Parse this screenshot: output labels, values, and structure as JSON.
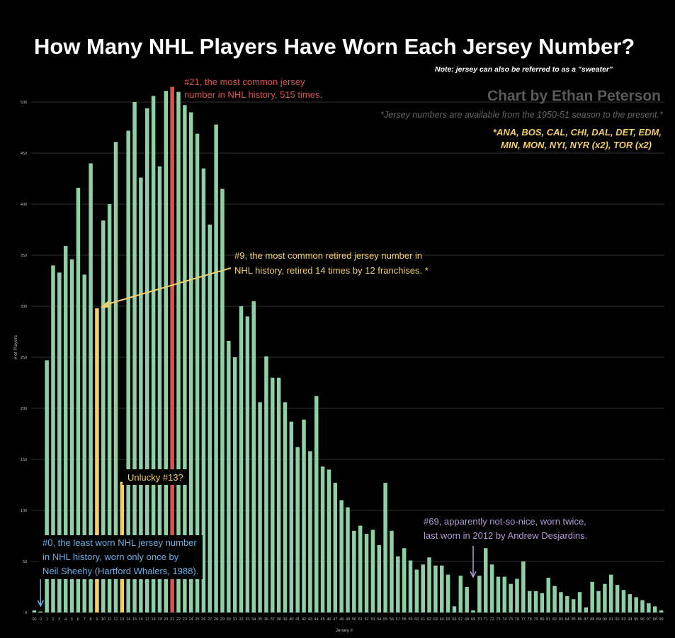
{
  "title": "How Many NHL Players Have Worn Each Jersey Number?",
  "note": "Note: jersey can also be referred to as a \"sweater\"",
  "credit": "Chart by Ethan Peterson",
  "availability_note": "*Jersey numbers are available from the 1950-51 season to the present.*",
  "retired_teams": [
    "*ANA, BOS, CAL, CHI, DAL, DET, EDM,",
    "MIN, MON, NYI, NYR (x2), TOR (x2)"
  ],
  "annotations": {
    "most_common": [
      "#21, the most common jersey",
      "number in NHL history, 515 times."
    ],
    "most_retired": [
      "#9, the most common retired jersey number in",
      "NHL history, retired 14 times by 12 franchises. *"
    ],
    "unlucky": "Unlucky #13?",
    "least_worn": [
      "#0, the least worn NHL jersey number",
      "in NHL history, worn only once by",
      "Neil Sheehy (Hartford Whalers, 1988)."
    ],
    "sixty_nine": [
      "#69, apparently not-so-nice, worn twice,",
      "last worn in 2012 by Andrew Desjardins."
    ]
  },
  "colors": {
    "background": "#000000",
    "bar": "#8fcfa6",
    "highlight_red": "#d9534f",
    "highlight_yellow": "#f3cf6a",
    "highlight_blue": "#6ab0e6",
    "highlight_purple": "#b39ddb",
    "grid": "#333333"
  },
  "chart_data": {
    "type": "bar",
    "title": "How Many NHL Players Have Worn Each Jersey Number?",
    "xlabel": "Jersey #",
    "ylabel": "# of Players",
    "ylim": [
      0,
      520
    ],
    "yticks": [
      0,
      50,
      100,
      150,
      200,
      250,
      300,
      350,
      400,
      450,
      500
    ],
    "grid": true,
    "categories": [
      "00",
      "0",
      "1",
      "2",
      "3",
      "4",
      "5",
      "6",
      "7",
      "8",
      "9",
      "10",
      "11",
      "12",
      "13",
      "14",
      "15",
      "16",
      "17",
      "18",
      "19",
      "20",
      "21",
      "22",
      "23",
      "24",
      "25",
      "26",
      "27",
      "28",
      "29",
      "30",
      "31",
      "32",
      "33",
      "34",
      "35",
      "36",
      "37",
      "38",
      "39",
      "40",
      "41",
      "42",
      "43",
      "44",
      "45",
      "46",
      "47",
      "48",
      "49",
      "50",
      "51",
      "52",
      "53",
      "54",
      "55",
      "56",
      "57",
      "58",
      "59",
      "60",
      "61",
      "62",
      "63",
      "64",
      "65",
      "66",
      "67",
      "68",
      "69",
      "70",
      "71",
      "72",
      "73",
      "74",
      "75",
      "76",
      "77",
      "78",
      "79",
      "80",
      "81",
      "82",
      "83",
      "84",
      "85",
      "86",
      "87",
      "88",
      "89",
      "90",
      "91",
      "92",
      "93",
      "94",
      "95",
      "96",
      "97",
      "98",
      "99"
    ],
    "values": [
      2,
      1,
      247,
      340,
      333,
      359,
      346,
      416,
      331,
      440,
      298,
      384,
      400,
      461,
      128,
      472,
      500,
      426,
      494,
      506,
      437,
      511,
      515,
      510,
      497,
      490,
      469,
      435,
      380,
      478,
      415,
      266,
      250,
      300,
      290,
      305,
      206,
      251,
      230,
      230,
      206,
      187,
      162,
      189,
      158,
      212,
      143,
      140,
      127,
      110,
      103,
      80,
      85,
      77,
      81,
      66,
      127,
      80,
      55,
      63,
      51,
      42,
      47,
      54,
      46,
      46,
      37,
      6,
      36,
      25,
      2,
      36,
      63,
      47,
      35,
      35,
      28,
      33,
      50,
      21,
      21,
      19,
      34,
      26,
      20,
      16,
      13,
      20,
      5,
      30,
      21,
      28,
      37,
      27,
      22,
      18,
      15,
      12,
      9,
      6,
      2
    ]
  }
}
